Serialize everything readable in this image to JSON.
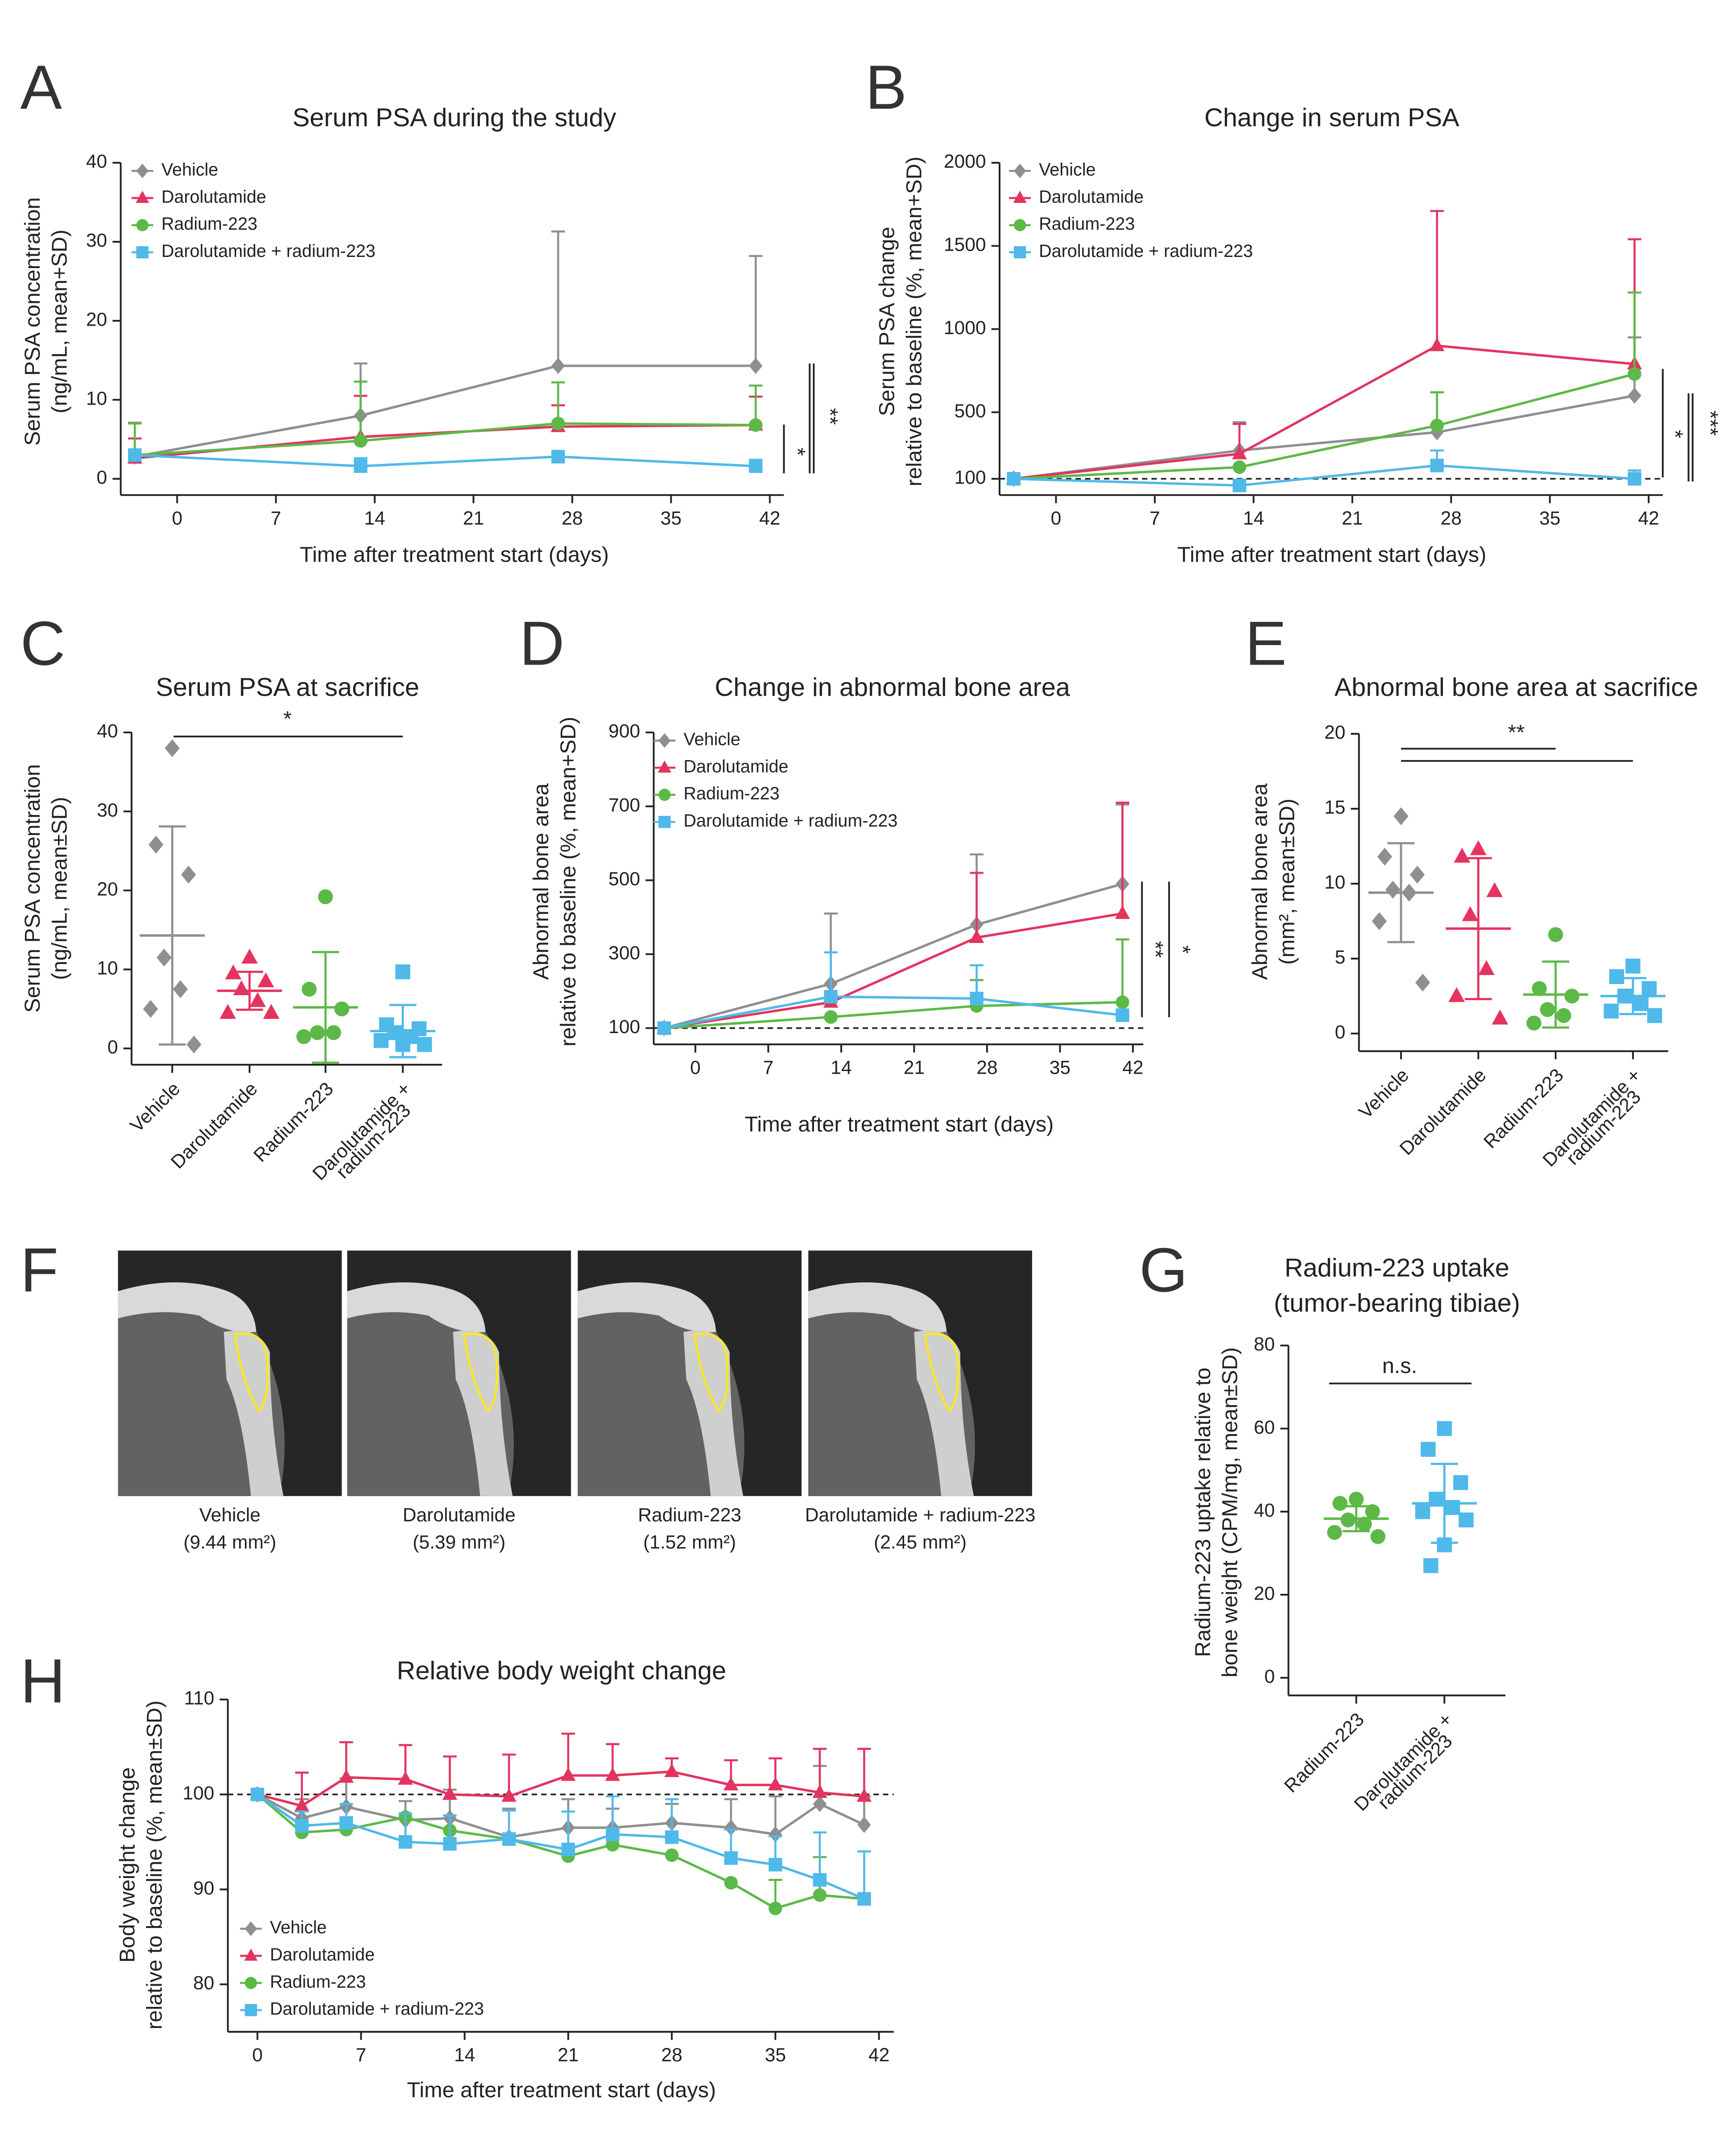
{
  "chart_data": [
    {
      "panel": "A",
      "type": "line",
      "title": "Serum PSA during the study",
      "xlabel": "Time after treatment start (days)",
      "ylabel": [
        "Serum PSA concentration",
        "(ng/mL, mean+SD)"
      ],
      "x": [
        -3,
        13,
        27,
        41
      ],
      "xlim": [
        -4,
        43
      ],
      "xticks": [
        0,
        7,
        14,
        21,
        28,
        35,
        42
      ],
      "ylim": [
        0,
        40
      ],
      "yticks": [
        0,
        10,
        20,
        30,
        40
      ],
      "legend": "upper left",
      "series": [
        {
          "name": "Vehicle",
          "color": "#8f8f8f",
          "marker": "diamond",
          "values": [
            2.8,
            8.0,
            14.3,
            14.3
          ],
          "errors": [
            4.3,
            6.6,
            17.0,
            13.9
          ]
        },
        {
          "name": "Darolutamide",
          "color": "#e3345f",
          "marker": "triangle",
          "values": [
            2.6,
            5.3,
            6.6,
            6.8
          ],
          "errors": [
            2.5,
            5.2,
            2.7,
            3.6
          ]
        },
        {
          "name": "Radium-223",
          "color": "#5cb947",
          "marker": "circle",
          "values": [
            3.0,
            4.8,
            7.0,
            6.8
          ],
          "errors": [
            4.0,
            7.5,
            5.2,
            5.0
          ]
        },
        {
          "name": "Darolutamide + radium-223",
          "color": "#4fb9e9",
          "marker": "square",
          "values": [
            3.0,
            1.6,
            2.8,
            1.6
          ],
          "errors": [
            0,
            1.0,
            0.2,
            0.8
          ]
        }
      ],
      "annotations": [
        "*",
        "**"
      ]
    },
    {
      "panel": "B",
      "type": "line",
      "title": "Change in serum PSA",
      "xlabel": "Time after treatment start (days)",
      "ylabel": [
        "Serum PSA change",
        "relative to baseline (%, mean+SD)"
      ],
      "x": [
        -3,
        13,
        27,
        41
      ],
      "xlim": [
        -4,
        43
      ],
      "xticks": [
        0,
        7,
        14,
        21,
        28,
        35,
        42
      ],
      "ylim": [
        100,
        2000
      ],
      "yticks": [
        100,
        500,
        1000,
        1500,
        2000
      ],
      "refline": 100,
      "legend": "upper left",
      "series": [
        {
          "name": "Vehicle",
          "color": "#8f8f8f",
          "marker": "diamond",
          "values": [
            100,
            270,
            380,
            600
          ],
          "errors": [
            0,
            170,
            240,
            350
          ]
        },
        {
          "name": "Darolutamide",
          "color": "#e3345f",
          "marker": "triangle",
          "values": [
            100,
            250,
            900,
            790
          ],
          "errors": [
            0,
            180,
            810,
            750
          ]
        },
        {
          "name": "Radium-223",
          "color": "#5cb947",
          "marker": "circle",
          "values": [
            100,
            170,
            420,
            730
          ],
          "errors": [
            0,
            0,
            200,
            490
          ]
        },
        {
          "name": "Darolutamide + radium-223",
          "color": "#4fb9e9",
          "marker": "square",
          "values": [
            100,
            60,
            180,
            100
          ],
          "errors": [
            0,
            0,
            90,
            50
          ]
        }
      ],
      "annotations": [
        "*",
        "***"
      ]
    },
    {
      "panel": "C",
      "type": "dotplot",
      "title": "Serum PSA at sacrifice",
      "ylabel": [
        "Serum PSA concentration",
        "(ng/mL, mean±SD)"
      ],
      "categories": [
        "Vehicle",
        "Darolutamide",
        "Radium-223",
        [
          "Darolutamide +",
          "radium-223"
        ]
      ],
      "colors": [
        "#8f8f8f",
        "#e3345f",
        "#5cb947",
        "#4fb9e9"
      ],
      "markers": [
        "diamond",
        "triangle",
        "circle",
        "square"
      ],
      "points": [
        [
          38,
          25.8,
          22,
          11.5,
          7.5,
          5,
          0.5
        ],
        [
          11.5,
          9.5,
          8.5,
          7.5,
          6,
          4.5,
          4.5
        ],
        [
          19.2,
          7.5,
          5,
          2,
          2,
          1.5
        ],
        [
          9.7,
          3,
          2.5,
          2,
          1.5,
          1,
          0.5,
          0.5
        ]
      ],
      "means": [
        14.3,
        7.3,
        5.2,
        2.2
      ],
      "sds": [
        13.8,
        2.4,
        7.0,
        3.3
      ],
      "ylim": [
        0,
        40
      ],
      "yticks": [
        0,
        10,
        20,
        30,
        40
      ],
      "annotations": [
        "*"
      ]
    },
    {
      "panel": "D",
      "type": "line",
      "title": "Change in abnormal bone area",
      "xlabel": "Time after treatment start (days)",
      "ylabel": [
        "Abnormal bone area",
        "relative to baseline (%, mean+SD)"
      ],
      "x": [
        -3,
        13,
        27,
        41
      ],
      "xlim": [
        -4,
        43
      ],
      "xticks": [
        0,
        7,
        14,
        21,
        28,
        35,
        42
      ],
      "ylim": [
        100,
        900
      ],
      "yticks": [
        100,
        300,
        500,
        700,
        900
      ],
      "refline": 100,
      "legend": "upper left",
      "series": [
        {
          "name": "Vehicle",
          "color": "#8f8f8f",
          "marker": "diamond",
          "values": [
            100,
            220,
            380,
            490
          ],
          "errors": [
            0,
            190,
            190,
            215
          ]
        },
        {
          "name": "Darolutamide",
          "color": "#e3345f",
          "marker": "triangle",
          "values": [
            100,
            170,
            345,
            410
          ],
          "errors": [
            0,
            0,
            175,
            300
          ]
        },
        {
          "name": "Radium-223",
          "color": "#5cb947",
          "marker": "circle",
          "values": [
            100,
            130,
            160,
            170
          ],
          "errors": [
            0,
            0,
            70,
            170
          ]
        },
        {
          "name": "Darolutamide + radium-223",
          "color": "#4fb9e9",
          "marker": "square",
          "values": [
            100,
            185,
            180,
            135
          ],
          "errors": [
            0,
            120,
            90,
            0
          ]
        }
      ],
      "annotations": [
        "**",
        "*"
      ]
    },
    {
      "panel": "E",
      "type": "dotplot",
      "title": "Abnormal bone area at sacrifice",
      "ylabel": [
        "Abnormal bone area",
        "(mm², mean±SD)"
      ],
      "categories": [
        "Vehicle",
        "Darolutamide",
        "Radium-223",
        [
          "Darolutamide +",
          "radium-223"
        ]
      ],
      "colors": [
        "#8f8f8f",
        "#e3345f",
        "#5cb947",
        "#4fb9e9"
      ],
      "markers": [
        "diamond",
        "triangle",
        "circle",
        "square"
      ],
      "points": [
        [
          14.5,
          11.8,
          10.6,
          9.6,
          9.4,
          7.5,
          3.4
        ],
        [
          12.3,
          11.8,
          9.5,
          7.9,
          4.3,
          2.5,
          1.0
        ],
        [
          6.6,
          3.0,
          2.5,
          1.6,
          1.2,
          0.7
        ],
        [
          4.5,
          3.8,
          3.0,
          2.5,
          2.0,
          1.5,
          1.2
        ]
      ],
      "means": [
        9.4,
        7.0,
        2.6,
        2.5
      ],
      "sds": [
        3.3,
        4.7,
        2.2,
        1.2
      ],
      "ylim": [
        0,
        20
      ],
      "yticks": [
        0,
        5,
        10,
        15,
        20
      ],
      "annotations": [
        "**"
      ]
    },
    {
      "panel": "F",
      "type": "image",
      "images": [
        {
          "label": "Vehicle",
          "area_label": "(9.44 mm²)"
        },
        {
          "label": "Darolutamide",
          "area_label": "(5.39 mm²)"
        },
        {
          "label": "Radium-223",
          "area_label": "(1.52 mm²)"
        },
        {
          "label": "Darolutamide + radium-223",
          "area_label": "(2.45 mm²)"
        }
      ]
    },
    {
      "panel": "G",
      "type": "dotplot",
      "title": [
        "Radium-223 uptake",
        "(tumor-bearing tibiae)"
      ],
      "ylabel": [
        "Radium-223 uptake relative to",
        "bone weight (CPM/mg, mean±SD)"
      ],
      "categories": [
        "Radium-223",
        [
          "Darolutamide +",
          "radium-223"
        ]
      ],
      "colors": [
        "#5cb947",
        "#4fb9e9"
      ],
      "markers": [
        "circle",
        "square"
      ],
      "points": [
        [
          43,
          42,
          40,
          38,
          37,
          35,
          34
        ],
        [
          60,
          55,
          47,
          43,
          41,
          40,
          38,
          32,
          27
        ]
      ],
      "means": [
        38.3,
        42.0
      ],
      "sds": [
        3.0,
        9.5
      ],
      "ylim": [
        0,
        80
      ],
      "yticks": [
        0,
        20,
        40,
        60,
        80
      ],
      "annotations": [
        "n.s."
      ]
    },
    {
      "panel": "H",
      "type": "line",
      "title": "Relative body weight change",
      "xlabel": "Time after treatment start (days)",
      "ylabel": [
        "Body weight change",
        "relative to baseline (%, mean±SD)"
      ],
      "x": [
        0,
        3,
        6,
        10,
        13,
        17,
        21,
        24,
        28,
        32,
        35,
        38,
        41
      ],
      "xlim": [
        -2,
        43
      ],
      "xticks": [
        0,
        7,
        14,
        21,
        28,
        35,
        42
      ],
      "ylim": [
        75,
        110
      ],
      "yticks": [
        80,
        90,
        100,
        110
      ],
      "refline": 100,
      "legend": "lower left",
      "series": [
        {
          "name": "Vehicle",
          "color": "#8f8f8f",
          "marker": "diamond",
          "values": [
            100,
            97.5,
            98.7,
            97.3,
            97.5,
            95.5,
            96.5,
            96.5,
            97,
            96.5,
            95.8,
            99,
            96.8
          ],
          "errors": [
            0,
            2,
            3,
            2,
            3,
            3,
            3,
            2,
            2,
            3,
            4,
            4,
            3
          ]
        },
        {
          "name": "Darolutamide",
          "color": "#e3345f",
          "marker": "triangle",
          "values": [
            100,
            98.8,
            101.8,
            101.6,
            100,
            99.8,
            102,
            102,
            102.4,
            101,
            101,
            100.2,
            99.8
          ],
          "errors": [
            0,
            3.5,
            3.7,
            3.6,
            4,
            4.4,
            4.4,
            3.3,
            1.4,
            2.6,
            2.8,
            4.6,
            5
          ]
        },
        {
          "name": "Radium-223",
          "color": "#5cb947",
          "marker": "circle",
          "values": [
            100,
            96,
            96.3,
            97.6,
            96.2,
            95.3,
            93.5,
            94.7,
            93.6,
            90.7,
            88,
            89.4,
            89
          ],
          "errors": [
            0,
            0,
            0,
            0,
            0,
            0,
            0,
            0,
            0,
            0,
            3,
            4,
            0
          ]
        },
        {
          "name": "Darolutamide + radium-223",
          "color": "#4fb9e9",
          "marker": "square",
          "values": [
            100,
            96.7,
            97,
            95,
            94.8,
            95.3,
            94.2,
            95.8,
            95.5,
            93.3,
            92.6,
            91,
            89
          ],
          "errors": [
            0,
            1.5,
            2,
            3,
            3,
            3,
            4,
            4,
            4,
            3,
            3,
            5,
            5
          ]
        }
      ]
    }
  ]
}
